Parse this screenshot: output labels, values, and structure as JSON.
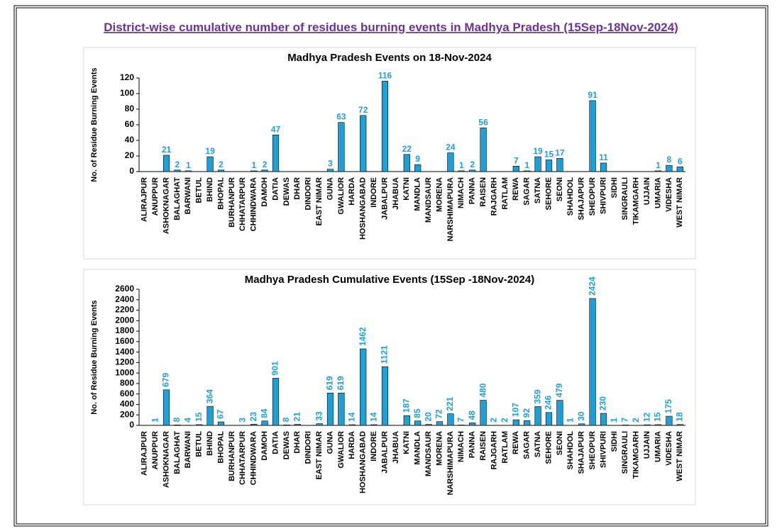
{
  "page_title": "District-wise  cumulative  number  of  residues  burning  events  in  Madhya  Pradesh  (15Sep-18Nov-2024)",
  "chart_data": [
    {
      "type": "bar",
      "title": "Madhya Pradesh Events on 18-Nov-2024",
      "y_label": "No. of Residue Burning Events",
      "color": "#1f9fd8",
      "label_color": "#1ea0d8",
      "categories": [
        "ALIRAJPUR",
        "ANUPPUR",
        "ASHOKNAGAR",
        "BALAGHAT",
        "BARWANI",
        "BETUL",
        "BHIND",
        "BHOPAL",
        "BURHANPUR",
        "CHHATARPUR",
        "CHHINDWARA",
        "DAMOH",
        "DATIA",
        "DEWAS",
        "DHAR",
        "DINDORI",
        "EAST NIMAR",
        "GUNA",
        "GWALIOR",
        "HARDA",
        "HOSHANGABAD",
        "INDORE",
        "JABALPUR",
        "JHABUA",
        "KATNI",
        "MANDLA",
        "MANDSAUR",
        "MORENA",
        "NARSHIMAPURA",
        "NIMACH",
        "PANNA",
        "RAISEN",
        "RAJGARH",
        "RATLAM",
        "REWA",
        "SAGAR",
        "SATNA",
        "SEHORE",
        "SEONI",
        "SHAHDOL",
        "SHAJAPUR",
        "SHEOPUR",
        "SHIVPURI",
        "SIDHI",
        "SINGRAULI",
        "TIKAMGARH",
        "UJJAIN",
        "UMARIA",
        "VIDESHA",
        "WEST NIMAR"
      ],
      "values": [
        0,
        0,
        21,
        2,
        1,
        0,
        19,
        2,
        0,
        0,
        1,
        2,
        47,
        0,
        0,
        0,
        0,
        3,
        63,
        0,
        72,
        0,
        116,
        0,
        22,
        9,
        0,
        0,
        24,
        1,
        2,
        56,
        0,
        0,
        7,
        1,
        19,
        15,
        17,
        0,
        0,
        91,
        11,
        0,
        0,
        0,
        0,
        1,
        8,
        6
      ],
      "ylim": [
        0,
        120
      ],
      "yticks": [
        0,
        20,
        40,
        60,
        80,
        100,
        120
      ]
    },
    {
      "type": "bar",
      "title": "Madhya Pradesh Cumulative Events (15Sep -18Nov-2024)",
      "y_label": "No. of Residue Burning Events",
      "color": "#1f9fd8",
      "label_color": "#1ea0d8",
      "categories": [
        "ALIRAJPUR",
        "ANUPPUR",
        "ASHOKNAGAR",
        "BALAGHAT",
        "BARWANI",
        "BETUL",
        "BHIND",
        "BHOPAL",
        "BURHANPUR",
        "CHHATARPUR",
        "CHHINDWARA",
        "DAMOH",
        "DATIA",
        "DEWAS",
        "DHAR",
        "DINDORI",
        "EAST NIMAR",
        "GUNA",
        "GWALIOR",
        "HARDA",
        "HOSHANGABAD",
        "INDORE",
        "JABALPUR",
        "JHABUA",
        "KATNI",
        "MANDLA",
        "MANDSAUR",
        "MORENA",
        "NARSHIMAPURA",
        "NIMACH",
        "PANNA",
        "RAISEN",
        "RAJGARH",
        "RATLAM",
        "REWA",
        "SAGAR",
        "SATNA",
        "SEHORE",
        "SEONI",
        "SHAHDOL",
        "SHAJAPUR",
        "SHEOPUR",
        "SHIVPURI",
        "SIDHI",
        "SINGRAULI",
        "TIKAMGARH",
        "UJJAIN",
        "UMARIA",
        "VIDESHA",
        "WEST NIMAR"
      ],
      "values": [
        0,
        1,
        679,
        8,
        4,
        15,
        364,
        67,
        0,
        3,
        23,
        84,
        901,
        8,
        21,
        0,
        33,
        619,
        619,
        14,
        1462,
        14,
        1121,
        0,
        187,
        85,
        20,
        72,
        221,
        7,
        48,
        480,
        2,
        2,
        107,
        92,
        359,
        246,
        479,
        1,
        30,
        2424,
        230,
        1,
        7,
        2,
        12,
        15,
        175,
        18
      ],
      "ylim": [
        0,
        2600
      ],
      "yticks": [
        0,
        200,
        400,
        600,
        800,
        1000,
        1200,
        1400,
        1600,
        1800,
        2000,
        2200,
        2400,
        2600
      ]
    }
  ]
}
